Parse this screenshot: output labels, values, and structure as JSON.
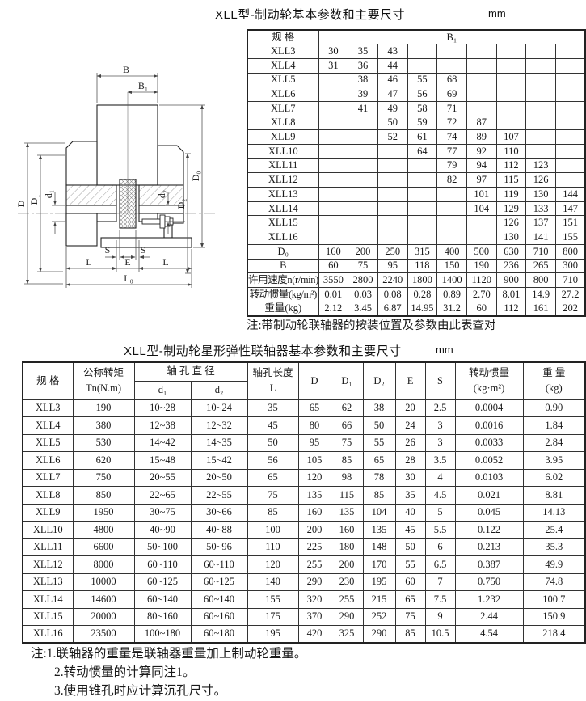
{
  "section1": {
    "title": "XLL型-制动轮基本参数和主要尺寸",
    "unit": "mm",
    "note": "注:带制动轮联轴器的按装位置及参数由此表查对",
    "table": {
      "spec_header": "规  格",
      "b1_header": "B₁",
      "rows": [
        [
          "XLL3",
          "30",
          "35",
          "43",
          "",
          "",
          "",
          "",
          "",
          ""
        ],
        [
          "XLL4",
          "31",
          "36",
          "44",
          "",
          "",
          "",
          "",
          "",
          ""
        ],
        [
          "XLL5",
          "",
          "38",
          "46",
          "55",
          "68",
          "",
          "",
          "",
          ""
        ],
        [
          "XLL6",
          "",
          "39",
          "47",
          "56",
          "69",
          "",
          "",
          "",
          ""
        ],
        [
          "XLL7",
          "",
          "41",
          "49",
          "58",
          "71",
          "",
          "",
          "",
          ""
        ],
        [
          "XLL8",
          "",
          "",
          "50",
          "59",
          "72",
          "87",
          "",
          "",
          ""
        ],
        [
          "XLL9",
          "",
          "",
          "52",
          "61",
          "74",
          "89",
          "107",
          "",
          ""
        ],
        [
          "XLL10",
          "",
          "",
          "",
          "64",
          "77",
          "92",
          "110",
          "",
          ""
        ],
        [
          "XLL11",
          "",
          "",
          "",
          "",
          "79",
          "94",
          "112",
          "123",
          ""
        ],
        [
          "XLL12",
          "",
          "",
          "",
          "",
          "82",
          "97",
          "115",
          "126",
          ""
        ],
        [
          "XLL13",
          "",
          "",
          "",
          "",
          "",
          "101",
          "119",
          "130",
          "144"
        ],
        [
          "XLL14",
          "",
          "",
          "",
          "",
          "",
          "104",
          "129",
          "133",
          "147"
        ],
        [
          "XLL15",
          "",
          "",
          "",
          "",
          "",
          "",
          "126",
          "137",
          "151"
        ],
        [
          "XLL16",
          "",
          "",
          "",
          "",
          "",
          "",
          "130",
          "141",
          "155"
        ]
      ],
      "param_rows": [
        [
          "D₀",
          "160",
          "200",
          "250",
          "315",
          "400",
          "500",
          "630",
          "710",
          "800"
        ],
        [
          "B",
          "60",
          "75",
          "95",
          "118",
          "150",
          "190",
          "236",
          "265",
          "300"
        ],
        [
          "许用速度n(r/min)",
          "3550",
          "2800",
          "2240",
          "1800",
          "1400",
          "1120",
          "900",
          "800",
          "710"
        ],
        [
          "转动惯量(kg/m²)",
          "0.01",
          "0.03",
          "0.08",
          "0.28",
          "0.89",
          "2.70",
          "8.01",
          "14.9",
          "27.2"
        ],
        [
          "重量(kg)",
          "2.12",
          "3.45",
          "6.87",
          "14.95",
          "31.2",
          "60",
          "112",
          "161",
          "202"
        ]
      ]
    },
    "drawing": {
      "labels": {
        "B": "B",
        "B1": "B₁",
        "D": "D",
        "D1": "D₁",
        "d1": "d₁",
        "d2": "d₂",
        "D2": "D₂",
        "D0": "D₀",
        "S_left": "S",
        "S_right": "S",
        "L_left": "L",
        "E": "E",
        "L_right": "L",
        "L0": "L₀"
      }
    }
  },
  "section2": {
    "title": "XLL型-制动轮星形弹性联轴器基本参数和主要尺寸",
    "unit": "mm",
    "table": {
      "headers": {
        "spec": "规  格",
        "torque_l1": "公称转矩",
        "torque_l2": "Tn(N.m)",
        "bore_dia": "轴 孔 直 径",
        "d1": "d₁",
        "d2": "d₂",
        "bore_len_l1": "轴孔长度",
        "bore_len_l2": "L",
        "D": "D",
        "D1": "D₁",
        "D2": "D₂",
        "E": "E",
        "S": "S",
        "inertia_l1": "转动惯量",
        "inertia_l2": "(kg·m²)",
        "weight_l1": "重 量",
        "weight_l2": "(kg)"
      },
      "rows": [
        [
          "XLL3",
          "190",
          "10~28",
          "10~24",
          "35",
          "65",
          "62",
          "38",
          "20",
          "2.5",
          "0.0004",
          "0.90"
        ],
        [
          "XLL4",
          "380",
          "12~38",
          "12~32",
          "45",
          "80",
          "66",
          "50",
          "24",
          "3",
          "0.0016",
          "1.84"
        ],
        [
          "XLL5",
          "530",
          "14~42",
          "14~35",
          "50",
          "95",
          "75",
          "55",
          "26",
          "3",
          "0.0033",
          "2.84"
        ],
        [
          "XLL6",
          "620",
          "15~48",
          "15~42",
          "56",
          "105",
          "85",
          "65",
          "28",
          "3.5",
          "0.0052",
          "3.95"
        ],
        [
          "XLL7",
          "750",
          "20~55",
          "20~50",
          "65",
          "120",
          "98",
          "78",
          "30",
          "4",
          "0.0103",
          "6.02"
        ],
        [
          "XLL8",
          "850",
          "22~65",
          "22~55",
          "75",
          "135",
          "115",
          "85",
          "35",
          "4.5",
          "0.021",
          "8.81"
        ],
        [
          "XLL9",
          "1950",
          "30~75",
          "30~66",
          "85",
          "160",
          "135",
          "104",
          "40",
          "5",
          "0.045",
          "14.13"
        ],
        [
          "XLL10",
          "4800",
          "40~90",
          "40~88",
          "100",
          "200",
          "160",
          "135",
          "45",
          "5.5",
          "0.122",
          "25.4"
        ],
        [
          "XLL11",
          "6600",
          "50~100",
          "50~96",
          "110",
          "225",
          "180",
          "148",
          "50",
          "6",
          "0.213",
          "35.3"
        ],
        [
          "XLL12",
          "8000",
          "60~110",
          "60~110",
          "120",
          "255",
          "200",
          "170",
          "55",
          "6.5",
          "0.387",
          "49.9"
        ],
        [
          "XLL13",
          "10000",
          "60~125",
          "60~125",
          "140",
          "290",
          "230",
          "195",
          "60",
          "7",
          "0.750",
          "74.8"
        ],
        [
          "XLL14",
          "14600",
          "60~140",
          "60~140",
          "155",
          "320",
          "255",
          "215",
          "65",
          "7.5",
          "1.232",
          "100.7"
        ],
        [
          "XLL15",
          "20000",
          "80~160",
          "60~160",
          "175",
          "370",
          "290",
          "252",
          "75",
          "9",
          "2.44",
          "150.9"
        ],
        [
          "XLL16",
          "23500",
          "100~180",
          "60~180",
          "195",
          "420",
          "325",
          "290",
          "85",
          "10.5",
          "4.54",
          "218.4"
        ]
      ]
    },
    "notes": [
      "注:1.联轴器的重量是联轴器重量加上制动轮重量。",
      "2.转动惯量的计算同注1。",
      "3.使用锥孔时应计算沉孔尺寸。"
    ]
  }
}
